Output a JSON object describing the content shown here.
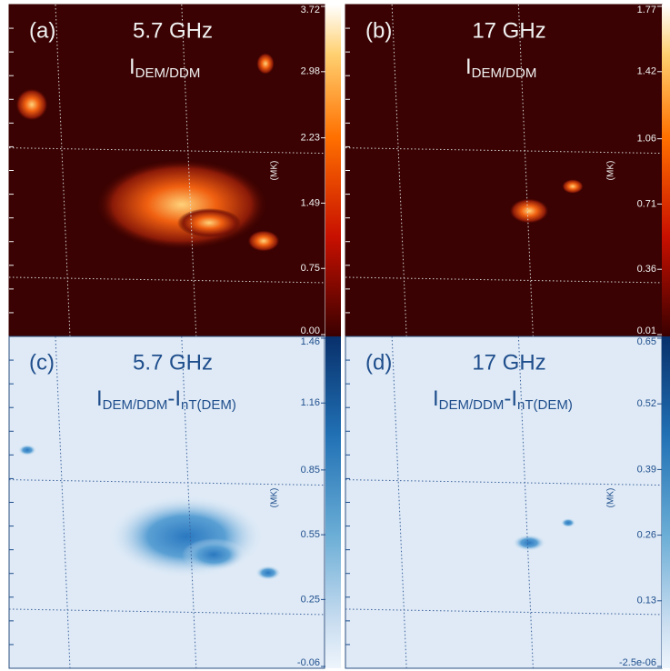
{
  "chart_data": [
    {
      "type": "image",
      "label": "(a)",
      "title": "5.7 GHz",
      "quantity": [
        "I",
        "DEM/DDM"
      ],
      "colorbar_label": "(MK)",
      "colormap": "hot",
      "ylim": [
        0,
        3.72
      ],
      "yticks": [
        {
          "value": 0,
          "label": "0.00"
        },
        0.75,
        1.49,
        2.23,
        2.98,
        3.72
      ]
    },
    {
      "type": "image",
      "label": "(b)",
      "title": "17 GHz",
      "quantity": [
        "I",
        "DEM/DDM"
      ],
      "colorbar_label": "(MK)",
      "colormap": "hot",
      "ylim": [
        0.01,
        1.77
      ],
      "yticks": [
        0.01,
        0.36,
        0.71,
        1.06,
        1.42,
        1.77
      ]
    },
    {
      "type": "image",
      "label": "(c)",
      "title": "5.7 GHz",
      "quantity": [
        "I",
        "DEM/DDM",
        "-I",
        "nT(DEM)"
      ],
      "colorbar_label": "(MK)",
      "colormap": "blues",
      "ylim": [
        -0.06,
        1.46
      ],
      "yticks": [
        -0.06,
        0.25,
        0.55,
        0.85,
        1.16,
        1.46
      ]
    },
    {
      "type": "image",
      "label": "(d)",
      "title": "17 GHz",
      "quantity": [
        "I",
        "DEM/DDM",
        "-I",
        "nT(DEM)"
      ],
      "colorbar_label": "(MK)",
      "colormap": "blues",
      "ylim": [
        -2.5e-06,
        0.65
      ],
      "yticks": [
        {
          "value": -2.5e-06,
          "label": "-2.5e-06"
        },
        0.13,
        0.26,
        0.39,
        0.52,
        0.65
      ]
    }
  ]
}
